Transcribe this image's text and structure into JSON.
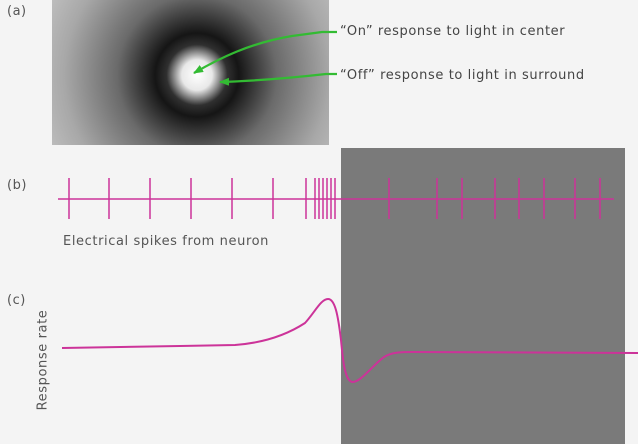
{
  "panels": {
    "a_label": "(a)",
    "b_label": "(b)",
    "c_label": "(c)"
  },
  "annotations": {
    "on_response": "“On” response to light in center",
    "off_response": "“Off” response to light in surround"
  },
  "spikes": {
    "caption": "Electrical spikes from neuron"
  },
  "response_plot": {
    "ylabel": "Response rate"
  },
  "colors": {
    "trace": "#cc3399",
    "arrow": "#33bb33",
    "shade": "#7a7a7a",
    "background": "#f4f4f4"
  }
}
